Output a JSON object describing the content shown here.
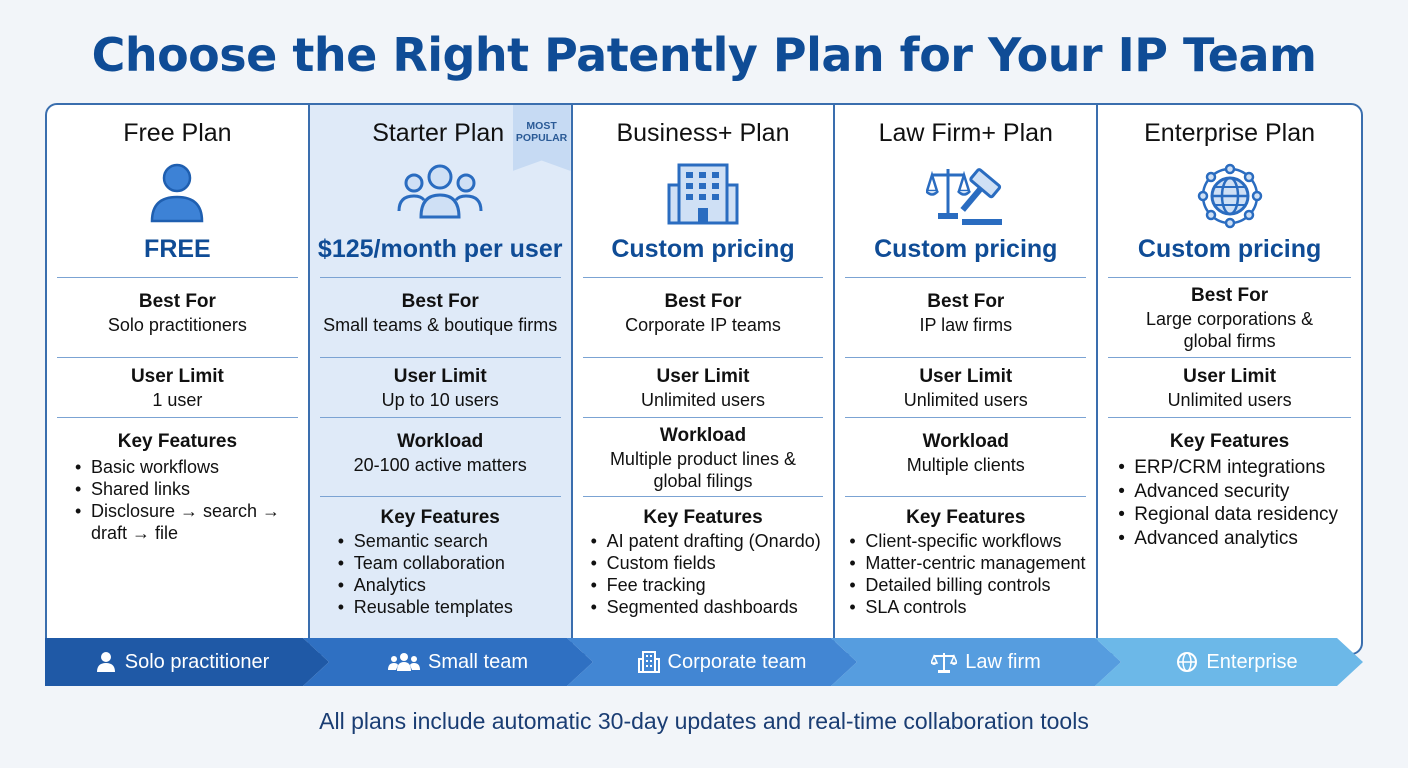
{
  "title": "Choose the Right Patently Plan for Your IP Team",
  "badge": {
    "line1": "MOST",
    "line2": "POPULAR"
  },
  "labels": {
    "best_for": "Best For",
    "user_limit": "User Limit",
    "workload": "Workload",
    "key_features": "Key Features"
  },
  "plans": [
    {
      "name": "Free Plan",
      "icon": "person-icon",
      "price": "FREE",
      "best_for": [
        "Solo practitioners"
      ],
      "user_limit": "1 user",
      "workload": "",
      "features": [
        "Basic workflows",
        "Shared links",
        "Disclosure → search →",
        "draft → file"
      ]
    },
    {
      "name": "Starter Plan",
      "icon": "team-icon",
      "price": "$125/month per user",
      "best_for": [
        "Small teams & boutique firms"
      ],
      "user_limit": "Up to 10 users",
      "workload": [
        "20-100 active matters"
      ],
      "features": [
        "Semantic search",
        "Team collaboration",
        "Analytics",
        "Reusable templates"
      ]
    },
    {
      "name": "Business+ Plan",
      "icon": "building-icon",
      "price": "Custom pricing",
      "best_for": [
        "Corporate IP teams"
      ],
      "user_limit": "Unlimited users",
      "workload": [
        "Multiple product lines &",
        "global filings"
      ],
      "features": [
        "AI patent drafting (Onardo)",
        "Custom fields",
        "Fee tracking",
        "Segmented dashboards"
      ]
    },
    {
      "name": "Law Firm+ Plan",
      "icon": "scales-gavel-icon",
      "price": "Custom pricing",
      "best_for": [
        "IP law firms"
      ],
      "user_limit": "Unlimited users",
      "workload": [
        "Multiple clients"
      ],
      "features": [
        "Client-specific workflows",
        "Matter-centric management",
        "Detailed billing controls",
        "SLA controls"
      ]
    },
    {
      "name": "Enterprise Plan",
      "icon": "globe-network-icon",
      "price": "Custom pricing",
      "best_for": [
        "Large corporations &",
        "global firms"
      ],
      "user_limit": "Unlimited users",
      "workload": "",
      "features": [
        "ERP/CRM integrations",
        "Advanced security",
        "Regional data residency",
        "Advanced analytics"
      ]
    }
  ],
  "flow": [
    {
      "label": "Solo practitioner",
      "icon": "person-icon",
      "color": "#1f59a6"
    },
    {
      "label": "Small team",
      "icon": "team-icon",
      "color": "#2f70c2"
    },
    {
      "label": "Corporate team",
      "icon": "building-icon",
      "color": "#4286d3"
    },
    {
      "label": "Law firm",
      "icon": "scales-icon",
      "color": "#569ddf"
    },
    {
      "label": "Enterprise",
      "icon": "globe-icon",
      "color": "#6cb8e8"
    }
  ],
  "colors": {
    "brand": "#0f4c96",
    "border": "#3a6eae",
    "featured_bg": "#dfeaf8"
  },
  "footnote": "All plans include automatic 30-day updates and real-time collaboration tools"
}
